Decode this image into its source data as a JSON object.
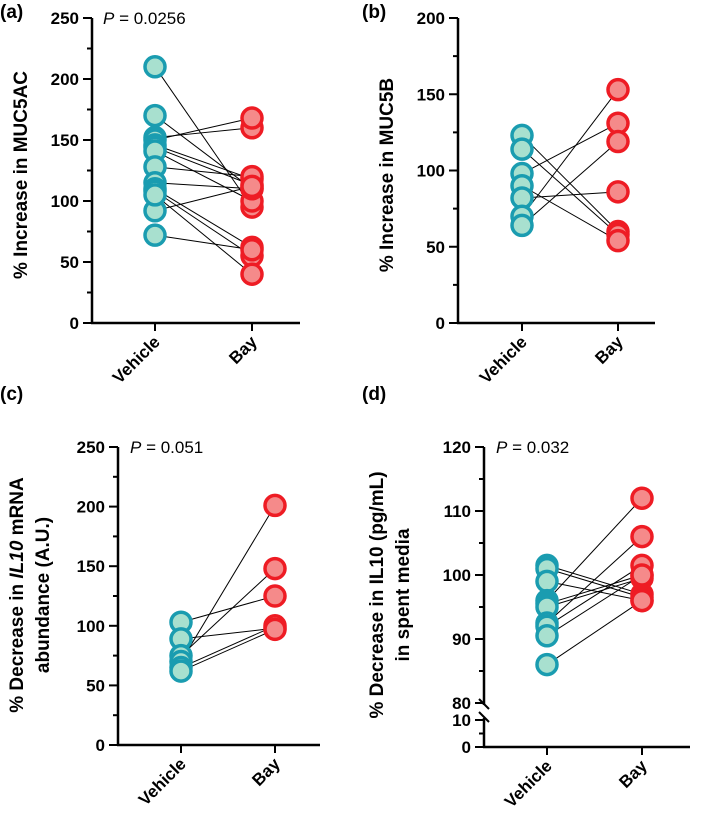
{
  "chart_data": [
    {
      "type": "scatter",
      "panel_label": "(a)",
      "ylabel": "% Increase in MUC5AC",
      "ylabel_line2": "",
      "p_prefix": "P",
      "p_value": " = 0.0256",
      "categories": [
        "Vehicle",
        "Bay"
      ],
      "ylim": [
        0,
        250
      ],
      "yticks": [
        0,
        50,
        100,
        150,
        200,
        250
      ],
      "pairs": [
        [
          210,
          95
        ],
        [
          170,
          110
        ],
        [
          152,
          160
        ],
        [
          150,
          168
        ],
        [
          146,
          118
        ],
        [
          144,
          113
        ],
        [
          141,
          100
        ],
        [
          128,
          120
        ],
        [
          115,
          110
        ],
        [
          110,
          62
        ],
        [
          108,
          55
        ],
        [
          92,
          112
        ],
        [
          72,
          60
        ],
        [
          105,
          40
        ]
      ],
      "colors": {
        "vehicle_fill": "#a8e0cf",
        "vehicle_stroke": "#1a9cb0",
        "bay_fill": "#f58a8a",
        "bay_stroke": "#ee1c24"
      }
    },
    {
      "type": "scatter",
      "panel_label": "(b)",
      "ylabel": "% Increase in MUC5B",
      "ylabel_line2": "",
      "p_prefix": "",
      "p_value": "",
      "categories": [
        "Vehicle",
        "Bay"
      ],
      "ylim": [
        0,
        200
      ],
      "yticks": [
        0,
        50,
        100,
        150,
        200
      ],
      "pairs": [
        [
          123,
          60
        ],
        [
          114,
          58
        ],
        [
          98,
          131
        ],
        [
          90,
          54
        ],
        [
          82,
          86
        ],
        [
          70,
          153
        ],
        [
          64,
          119
        ]
      ],
      "colors": {
        "vehicle_fill": "#a8e0cf",
        "vehicle_stroke": "#1a9cb0",
        "bay_fill": "#f58a8a",
        "bay_stroke": "#ee1c24"
      }
    },
    {
      "type": "scatter",
      "panel_label": "(c)",
      "ylabel": "% Decrease in IL10 mRNA",
      "ylabel_line2": "abundance (A.U.)",
      "p_prefix": "P",
      "p_value": " = 0.051",
      "categories": [
        "Vehicle",
        "Bay"
      ],
      "ylim": [
        0,
        250
      ],
      "yticks": [
        0,
        50,
        100,
        150,
        200,
        250
      ],
      "pairs": [
        [
          103,
          125
        ],
        [
          89,
          98
        ],
        [
          75,
          148
        ],
        [
          70,
          201
        ],
        [
          65,
          100
        ],
        [
          62,
          97
        ]
      ],
      "colors": {
        "vehicle_fill": "#a8e0cf",
        "vehicle_stroke": "#1a9cb0",
        "bay_fill": "#f58a8a",
        "bay_stroke": "#ee1c24"
      }
    },
    {
      "type": "scatter",
      "panel_label": "(d)",
      "ylabel": "% Decrease in IL10 (pg/mL)",
      "ylabel_line2": "in spent media",
      "p_prefix": "P",
      "p_value": " = 0.032",
      "categories": [
        "Vehicle",
        "Bay"
      ],
      "ylim": [
        0,
        120
      ],
      "axis_break": [
        10,
        80
      ],
      "yticks": [
        0,
        10,
        80,
        90,
        100,
        110,
        120
      ],
      "pairs": [
        [
          101.5,
          97
        ],
        [
          101,
          96.5
        ],
        [
          99,
          96
        ],
        [
          96,
          112
        ],
        [
          95.5,
          100
        ],
        [
          95,
          99.5
        ],
        [
          92.5,
          106
        ],
        [
          92,
          101.5
        ],
        [
          90.5,
          100
        ],
        [
          86,
          96
        ]
      ],
      "colors": {
        "vehicle_fill": "#a8e0cf",
        "vehicle_stroke": "#1a9cb0",
        "bay_fill": "#f58a8a",
        "bay_stroke": "#ee1c24"
      }
    }
  ]
}
